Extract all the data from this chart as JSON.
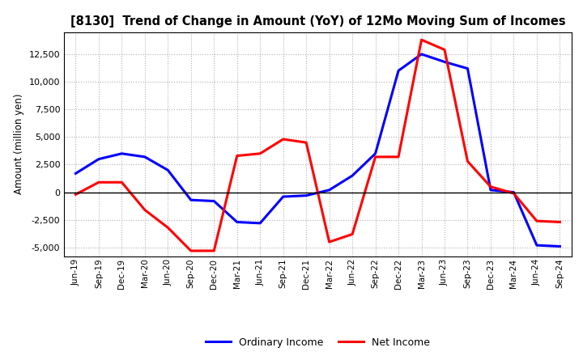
{
  "title": "[8130]  Trend of Change in Amount (YoY) of 12Mo Moving Sum of Incomes",
  "ylabel": "Amount (million yen)",
  "xlabels": [
    "Jun-19",
    "Sep-19",
    "Dec-19",
    "Mar-20",
    "Jun-20",
    "Sep-20",
    "Dec-20",
    "Mar-21",
    "Jun-21",
    "Sep-21",
    "Dec-21",
    "Mar-22",
    "Jun-22",
    "Sep-22",
    "Dec-22",
    "Mar-23",
    "Jun-23",
    "Sep-23",
    "Dec-23",
    "Mar-24",
    "Jun-24",
    "Sep-24"
  ],
  "ordinary_income": [
    1700,
    3000,
    3500,
    3200,
    2000,
    -700,
    -800,
    -2700,
    -2800,
    -400,
    -300,
    200,
    1500,
    3500,
    11000,
    12500,
    11800,
    11200,
    200,
    0,
    -4800,
    -4900
  ],
  "net_income": [
    -200,
    900,
    900,
    -1600,
    -3200,
    -5300,
    -5300,
    3300,
    3500,
    4800,
    4500,
    -4500,
    -3800,
    3200,
    3200,
    13800,
    12900,
    2800,
    500,
    -100,
    -2600,
    -2700
  ],
  "ordinary_income_color": "#0000ff",
  "net_income_color": "#ff0000",
  "background_color": "#ffffff",
  "grid_color": "#b0b0b0",
  "yticks": [
    -5000,
    -2500,
    0,
    2500,
    5000,
    7500,
    10000,
    12500
  ],
  "ylim": [
    -5800,
    14500
  ],
  "legend_ordinary": "Ordinary Income",
  "legend_net": "Net Income",
  "line_width": 2.2
}
